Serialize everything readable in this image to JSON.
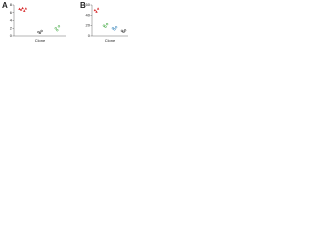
{
  "chart_data": [
    {
      "type": "scatter",
      "title": "A",
      "x_label": "Clone",
      "xlim": [
        0.5,
        3.5
      ],
      "ylim": [
        0,
        8
      ],
      "yticks": [
        0,
        2,
        4,
        6,
        8
      ],
      "series": [
        {
          "color": "#d62728",
          "marker": "triangle",
          "x": [
            1,
            1,
            1,
            1,
            1
          ],
          "values": [
            7,
            6.8,
            7.2,
            6.5,
            7.1
          ]
        },
        {
          "color": "#222222",
          "marker": "circle",
          "x": [
            2,
            2,
            2
          ],
          "values": [
            1,
            0.8,
            1.3
          ]
        },
        {
          "color": "#2ca02c",
          "marker": "circle",
          "x": [
            3,
            3,
            3
          ],
          "values": [
            2,
            1.5,
            2.5
          ]
        }
      ]
    },
    {
      "type": "scatter",
      "title": "B",
      "x_label": "Clone",
      "xlim": [
        0.5,
        4.5
      ],
      "ylim": [
        0,
        60
      ],
      "yticks": [
        0,
        20,
        40,
        60
      ],
      "series": [
        {
          "color": "#d62728",
          "marker": "triangle",
          "x": [
            1,
            1,
            1
          ],
          "values": [
            50,
            47,
            53
          ]
        },
        {
          "color": "#2ca02c",
          "marker": "circle",
          "x": [
            2,
            2,
            2
          ],
          "values": [
            20,
            18,
            23
          ]
        },
        {
          "color": "#1f77b4",
          "marker": "circle",
          "x": [
            3,
            3,
            3
          ],
          "values": [
            15,
            13,
            17
          ]
        },
        {
          "color": "#222222",
          "marker": "circle",
          "x": [
            4,
            4,
            4
          ],
          "values": [
            10,
            8,
            11
          ]
        }
      ]
    }
  ]
}
